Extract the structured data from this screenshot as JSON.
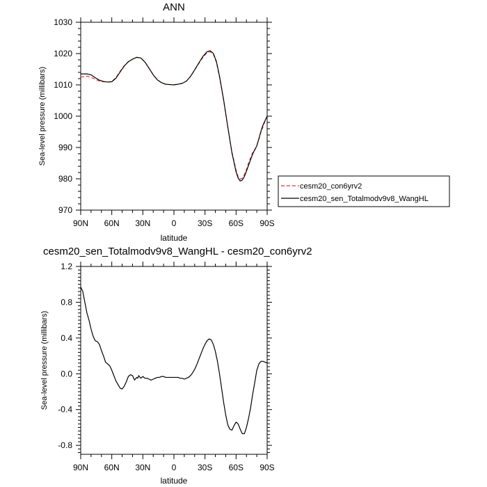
{
  "chart_data": [
    {
      "type": "line",
      "title": "ANN",
      "xlabel": "latitude",
      "ylabel": "Sea-level pressure (millibars)",
      "xlim": [
        90,
        -90
      ],
      "ylim": [
        970,
        1030
      ],
      "x_tick_values": [
        90,
        60,
        30,
        0,
        -30,
        -60,
        -90
      ],
      "x_tick_labels": [
        "90N",
        "60N",
        "30N",
        "0",
        "30S",
        "60S",
        "90S"
      ],
      "y_tick_values": [
        970,
        980,
        990,
        1000,
        1010,
        1020,
        1030
      ],
      "y_tick_labels": [
        "970",
        "980",
        "990",
        "1000",
        "1010",
        "1020",
        "1030"
      ],
      "legend_position": "right",
      "series": [
        {
          "name": "cesm20_con6yrv2",
          "color": "#e8322f",
          "style": "dashed",
          "x": [
            90,
            87,
            84,
            80,
            76,
            72,
            68,
            64,
            60,
            56,
            52,
            48,
            44,
            40,
            36,
            32,
            28,
            24,
            20,
            16,
            12,
            8,
            4,
            0,
            -4,
            -8,
            -12,
            -16,
            -20,
            -24,
            -28,
            -32,
            -35,
            -38,
            -41,
            -44,
            -48,
            -52,
            -56,
            -60,
            -62,
            -64,
            -66,
            -68,
            -70,
            -72,
            -74,
            -76,
            -78,
            -80,
            -82,
            -84,
            -86,
            -88,
            -90
          ],
          "y": [
            1012.5,
            1012.6,
            1012.8,
            1012.4,
            1011.8,
            1011.2,
            1011.0,
            1010.9,
            1011.1,
            1012.3,
            1014.3,
            1016.1,
            1017.4,
            1018.2,
            1018.8,
            1018.6,
            1017.3,
            1015.3,
            1013.2,
            1011.6,
            1010.7,
            1010.2,
            1010.1,
            1010.1,
            1010.2,
            1010.5,
            1011.2,
            1012.7,
            1014.7,
            1016.8,
            1018.8,
            1020.3,
            1020.6,
            1019.8,
            1017.2,
            1012.5,
            1005.0,
            996.5,
            988.5,
            982.8,
            980.6,
            979.9,
            980.2,
            981.3,
            983.0,
            985.0,
            986.7,
            988.4,
            989.1,
            990.6,
            992.7,
            994.9,
            996.6,
            998.5,
            1000.0
          ]
        },
        {
          "name": "cesm20_sen_Totalmodv9v8_WangHL",
          "color": "#000000",
          "style": "solid",
          "x": [
            90,
            87,
            84,
            80,
            76,
            72,
            68,
            64,
            60,
            56,
            52,
            48,
            44,
            40,
            36,
            32,
            28,
            24,
            20,
            16,
            12,
            8,
            4,
            0,
            -4,
            -8,
            -12,
            -16,
            -20,
            -24,
            -28,
            -32,
            -35,
            -38,
            -41,
            -44,
            -48,
            -52,
            -56,
            -60,
            -62,
            -64,
            -66,
            -68,
            -70,
            -72,
            -74,
            -76,
            -78,
            -80,
            -82,
            -84,
            -86,
            -88,
            -90
          ],
          "y": [
            1013.5,
            1013.5,
            1013.5,
            1013.2,
            1012.3,
            1011.5,
            1011.1,
            1010.9,
            1011.0,
            1012.1,
            1014.1,
            1016.0,
            1017.4,
            1018.2,
            1018.8,
            1018.6,
            1017.3,
            1015.3,
            1013.2,
            1011.6,
            1010.7,
            1010.2,
            1010.1,
            1010.0,
            1010.2,
            1010.5,
            1011.2,
            1012.7,
            1014.8,
            1017.0,
            1019.1,
            1020.6,
            1020.9,
            1020.1,
            1017.5,
            1012.8,
            1005.2,
            996.6,
            988.3,
            982.2,
            980.2,
            979.3,
            979.6,
            980.7,
            982.4,
            984.3,
            986.1,
            987.9,
            989.3,
            990.5,
            992.8,
            995.2,
            997.2,
            998.6,
            1000.0
          ]
        }
      ]
    },
    {
      "type": "line",
      "title": "cesm20_sen_Totalmodv9v8_WangHL - cesm20_con6yrv2",
      "xlabel": "latitude",
      "ylabel": "Sea-level pressure (millibars)",
      "xlim": [
        90,
        -90
      ],
      "ylim": [
        -0.9,
        1.2
      ],
      "x_tick_values": [
        90,
        60,
        30,
        0,
        -30,
        -60,
        -90
      ],
      "x_tick_labels": [
        "90N",
        "60N",
        "30N",
        "0",
        "30S",
        "60S",
        "90S"
      ],
      "y_tick_values": [
        -0.8,
        -0.4,
        0.0,
        0.4,
        0.8,
        1.2
      ],
      "y_tick_labels": [
        "-0.8",
        "-0.4",
        "0.0",
        "0.4",
        "0.8",
        "1.2"
      ],
      "series": [
        {
          "color": "#000000",
          "style": "solid",
          "x": [
            90,
            88,
            86,
            84,
            82,
            80,
            78,
            76,
            74,
            72,
            70,
            68,
            66,
            64,
            62,
            60,
            58,
            56,
            54,
            52,
            50,
            48,
            46,
            44,
            42,
            40,
            38,
            36,
            35,
            34,
            32,
            30,
            28,
            26,
            24,
            22,
            20,
            18,
            16,
            14,
            12,
            10,
            8,
            6,
            4,
            2,
            0,
            -2,
            -4,
            -6,
            -8,
            -10,
            -12,
            -14,
            -16,
            -18,
            -20,
            -22,
            -24,
            -26,
            -28,
            -30,
            -32,
            -34,
            -36,
            -38,
            -40,
            -42,
            -44,
            -46,
            -48,
            -50,
            -52,
            -54,
            -56,
            -58,
            -60,
            -62,
            -64,
            -66,
            -68,
            -70,
            -72,
            -74,
            -76,
            -78,
            -80,
            -82,
            -84,
            -86,
            -88,
            -90
          ],
          "y": [
            0.97,
            0.92,
            0.8,
            0.68,
            0.6,
            0.5,
            0.42,
            0.37,
            0.36,
            0.33,
            0.26,
            0.2,
            0.13,
            0.11,
            0.09,
            0.04,
            -0.02,
            -0.08,
            -0.12,
            -0.16,
            -0.17,
            -0.14,
            -0.09,
            -0.03,
            -0.01,
            -0.02,
            -0.07,
            -0.04,
            -0.05,
            -0.02,
            -0.05,
            -0.03,
            -0.05,
            -0.05,
            -0.06,
            -0.07,
            -0.06,
            -0.05,
            -0.04,
            -0.04,
            -0.03,
            -0.03,
            -0.04,
            -0.04,
            -0.04,
            -0.04,
            -0.04,
            -0.04,
            -0.04,
            -0.05,
            -0.05,
            -0.06,
            -0.05,
            -0.04,
            -0.02,
            0.01,
            0.05,
            0.1,
            0.16,
            0.22,
            0.28,
            0.33,
            0.37,
            0.39,
            0.38,
            0.33,
            0.25,
            0.14,
            0.0,
            -0.16,
            -0.32,
            -0.46,
            -0.57,
            -0.62,
            -0.63,
            -0.58,
            -0.54,
            -0.56,
            -0.62,
            -0.67,
            -0.67,
            -0.6,
            -0.5,
            -0.38,
            -0.23,
            -0.1,
            0.04,
            0.11,
            0.14,
            0.14,
            0.13,
            0.12
          ]
        }
      ]
    }
  ]
}
